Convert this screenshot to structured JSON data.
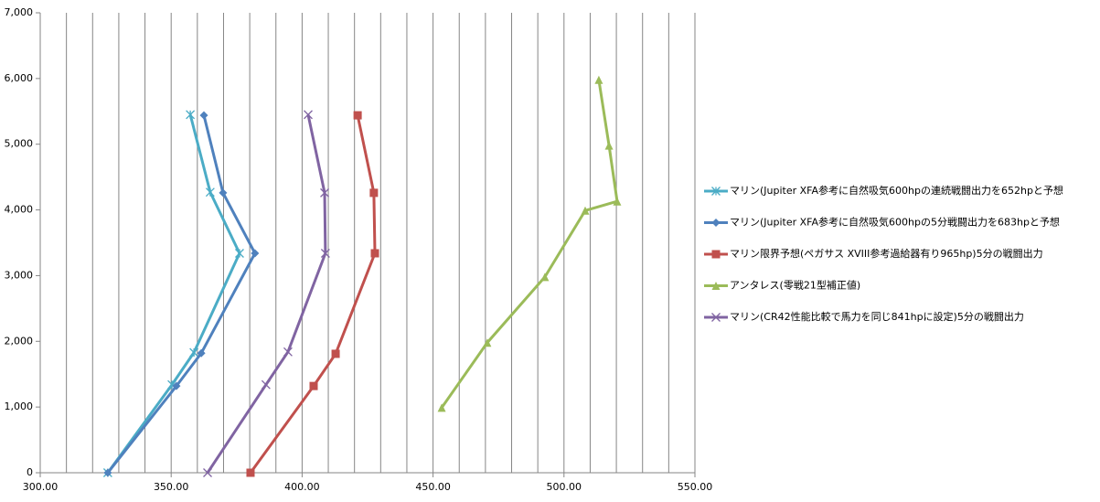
{
  "chart_data": {
    "type": "scatter-line",
    "xlim": [
      300,
      550
    ],
    "xticks": [
      {
        "value": 300,
        "label": "300.00"
      },
      {
        "value": 350,
        "label": "350.00"
      },
      {
        "value": 400,
        "label": "400.00"
      },
      {
        "value": 450,
        "label": "450.00"
      },
      {
        "value": 500,
        "label": "500.00"
      },
      {
        "value": 550,
        "label": "550.00"
      }
    ],
    "xminorgrid": [
      300,
      310,
      320,
      330,
      340,
      350,
      360,
      370,
      380,
      390,
      400,
      410,
      420,
      430,
      440,
      450,
      460,
      470,
      480,
      490,
      500,
      510,
      520,
      530,
      540,
      550
    ],
    "ylim": [
      0,
      7000
    ],
    "yticks": [
      0,
      {
        "value": 1000,
        "label": "1,000"
      },
      {
        "value": 2000,
        "label": "2,000"
      },
      {
        "value": 3000,
        "label": "3,000"
      },
      {
        "value": 4000,
        "label": "4,000"
      },
      {
        "value": 5000,
        "label": "5,000"
      },
      {
        "value": 6000,
        "label": "6,000"
      },
      {
        "value": 7000,
        "label": "7,000"
      }
    ],
    "legend": "right",
    "series": [
      {
        "name": "マリン(Jupiter XFA参考に自然吸気600hpの連続戦闘出力を652hpと予想",
        "color": "#4bacc6",
        "marker": "star",
        "x": [
          357.3,
          364.9,
          376.1,
          358.7,
          350.3,
          325.8
        ],
        "values": [
          5450,
          4270,
          3340,
          1830,
          1340,
          0
        ]
      },
      {
        "name": "マリン(Jupiter XFA参考に自然吸気600hpの5分戦闘出力を683hpと予想",
        "color": "#4f81bd",
        "marker": "diamond",
        "x": [
          362.5,
          369.8,
          382.0,
          361.5,
          352.0,
          325.8
        ],
        "values": [
          5440,
          4260,
          3340,
          1820,
          1320,
          0
        ]
      },
      {
        "name": "マリン限界予想(ペガサス XVIII参考過給器有り965hp)5分の戦闘出力",
        "color": "#c0504d",
        "marker": "square",
        "x": [
          421.2,
          427.4,
          427.8,
          412.8,
          404.4,
          380.3
        ],
        "values": [
          5440,
          4260,
          3340,
          1810,
          1320,
          0
        ]
      },
      {
        "name": "アンタレス(零戦21型補正値)",
        "color": "#9bbb59",
        "marker": "triangle",
        "x": [
          513.3,
          517.2,
          520.3,
          508.1,
          492.7,
          470.7,
          453.3
        ],
        "values": [
          5980,
          4980,
          4130,
          3990,
          2980,
          1980,
          990
        ]
      },
      {
        "name": "マリン(CR42性能比較で馬力を同じ841hpに設定)5分の戦闘出力",
        "color": "#8064a2",
        "marker": "x",
        "x": [
          402.3,
          408.6,
          408.9,
          394.6,
          386.2,
          363.9
        ],
        "values": [
          5450,
          4260,
          3340,
          1840,
          1340,
          0
        ]
      }
    ]
  }
}
